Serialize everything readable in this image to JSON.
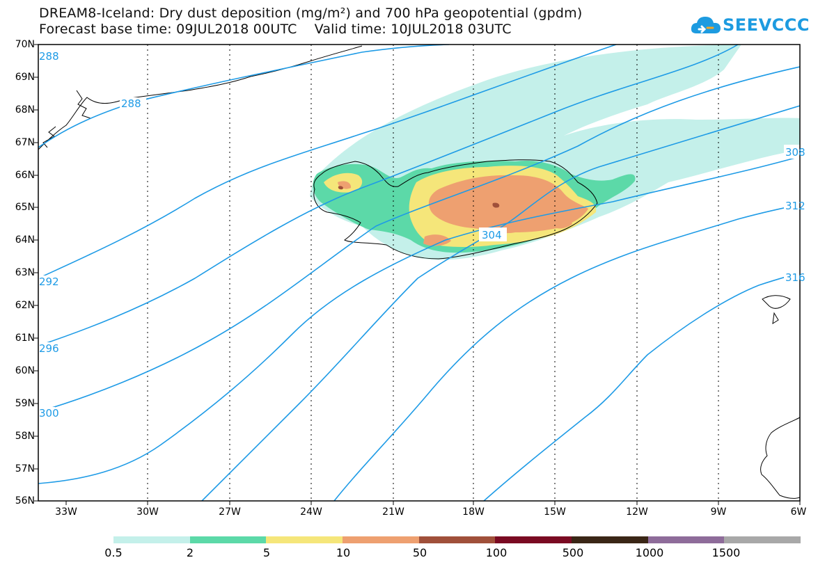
{
  "title": {
    "line1": "DREAM8-Iceland: Dry dust deposition (mg/m²) and 700 hPa geopotential (gpdm)",
    "line2": "Forecast base time: 09JUL2018 00UTC    Valid time: 10JUL2018 03UTC"
  },
  "logo": {
    "text": "SEEVCCC",
    "icon": "cloud-icon",
    "color": "#1d9be0"
  },
  "axes": {
    "lat_labels": [
      "70N",
      "69N",
      "68N",
      "67N",
      "66N",
      "65N",
      "64N",
      "63N",
      "62N",
      "61N",
      "60N",
      "59N",
      "58N",
      "57N",
      "56N"
    ],
    "lon_labels": [
      "33W",
      "30W",
      "27W",
      "24W",
      "21W",
      "18W",
      "15W",
      "12W",
      "9W",
      "6W"
    ]
  },
  "contours": {
    "color": "#1e9be6",
    "labels": [
      "288",
      "288",
      "292",
      "296",
      "300",
      "304",
      "308",
      "312",
      "316"
    ]
  },
  "legend": {
    "colors": [
      "#c4f0ea",
      "#5cd9a8",
      "#f5e67a",
      "#eea070",
      "#a0503a",
      "#7a0a22",
      "#3a2616",
      "#8e6c9a",
      "#a8a8a8"
    ],
    "labels": [
      "0.5",
      "2",
      "5",
      "10",
      "50",
      "100",
      "500",
      "1000",
      "1500"
    ]
  }
}
